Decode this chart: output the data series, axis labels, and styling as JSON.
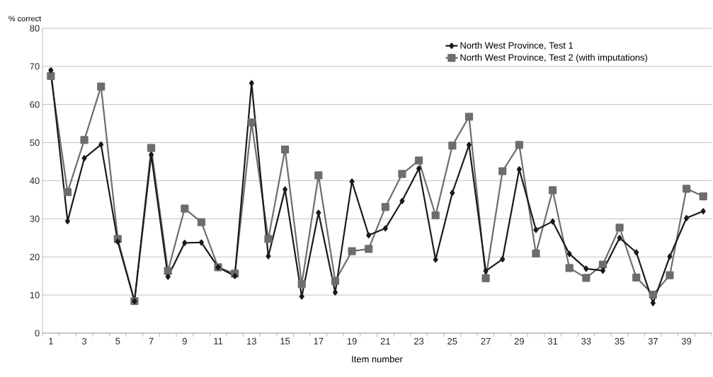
{
  "chart_data": {
    "type": "line",
    "ylabel": "% correct",
    "xlabel": "Item number",
    "categories": [
      "1",
      null,
      "3",
      null,
      "5",
      null,
      "7",
      null,
      "9",
      null,
      "11",
      null,
      "13",
      null,
      "15",
      null,
      "17",
      null,
      "19",
      null,
      "21",
      null,
      "23",
      null,
      "25",
      null,
      "27",
      null,
      "29",
      null,
      "31",
      null,
      "33",
      null,
      "35",
      null,
      "37",
      null,
      "39",
      null
    ],
    "series": [
      {
        "name": "North West Province,  Test 1",
        "color": "#1a1a1a",
        "marker": "diamond",
        "values": [
          69.0,
          29.4,
          45.9,
          49.5,
          24.0,
          8.4,
          46.8,
          14.8,
          23.7,
          23.8,
          17.3,
          15.0,
          65.6,
          20.2,
          37.7,
          9.6,
          31.6,
          10.7,
          39.8,
          25.7,
          27.5,
          34.7,
          43.2,
          19.3,
          36.8,
          49.4,
          16.3,
          19.4,
          43.0,
          27.1,
          29.3,
          20.8,
          16.9,
          16.4,
          25.0,
          21.2,
          7.9,
          20.1,
          30.2,
          32.0
        ]
      },
      {
        "name": "North West Province, Test 2 (with imputations)",
        "color": "#6d6d6d",
        "marker": "square",
        "values": [
          67.5,
          37.0,
          50.7,
          64.7,
          24.7,
          8.4,
          48.6,
          16.3,
          32.7,
          29.1,
          17.3,
          15.6,
          55.3,
          24.7,
          48.2,
          12.9,
          41.4,
          13.7,
          21.5,
          22.1,
          33.1,
          41.8,
          45.3,
          30.9,
          49.2,
          56.8,
          14.4,
          42.5,
          49.4,
          20.9,
          37.5,
          17.1,
          14.5,
          18.0,
          27.7,
          14.6,
          10.1,
          15.2,
          37.9,
          35.9
        ]
      }
    ],
    "ylim": [
      0,
      80
    ],
    "yticks": [
      0,
      10,
      20,
      30,
      40,
      50,
      60,
      70,
      80
    ],
    "grid": "y",
    "legend": "top right",
    "line_style": "solid"
  }
}
